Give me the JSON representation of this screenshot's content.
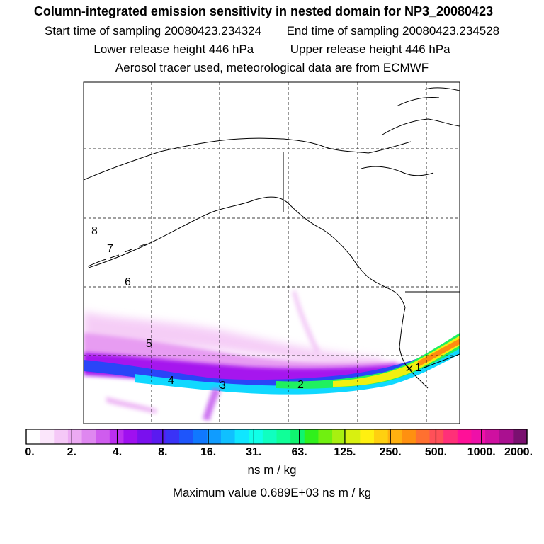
{
  "header": {
    "title": "Column-integrated emission sensitivity in nested domain for NP3_20080423",
    "start_label": "Start time of sampling",
    "start_value": "20080423.234324",
    "end_label": "End time of sampling",
    "end_value": "20080423.234528",
    "lower_label": "Lower release height",
    "lower_value": "446 hPa",
    "upper_label": "Upper release height",
    "upper_value": "446 hPa",
    "info": "Aerosol tracer used, meteorological data are from ECMWF"
  },
  "map": {
    "trajectory_labels": [
      "1",
      "2",
      "3",
      "4",
      "5",
      "6",
      "7",
      "8"
    ]
  },
  "colorbar": {
    "tick_labels": [
      "0.",
      "2.",
      "4.",
      "8.",
      "16.",
      "31.",
      "63.",
      "125.",
      "250.",
      "500.",
      "1000.",
      "2000."
    ],
    "colors": [
      "#ffffff",
      "#fbe6fb",
      "#f5c8f7",
      "#ecaaf3",
      "#df87f0",
      "#cf5cee",
      "#bb2ff0",
      "#9f10f0",
      "#7a10ee",
      "#5a1af0",
      "#3a33f6",
      "#1e55fb",
      "#1078ff",
      "#109cff",
      "#10c0ff",
      "#10e6ff",
      "#10ffe8",
      "#10ffc0",
      "#10ff98",
      "#10f470",
      "#30f01c",
      "#70f010",
      "#a8f010",
      "#d8f010",
      "#fff010",
      "#ffd010",
      "#ffb010",
      "#ff9010",
      "#ff7030",
      "#ff5058",
      "#ff3078",
      "#ff1098",
      "#ee10a8",
      "#cf10a0",
      "#aa1090",
      "#7a1070"
    ],
    "units": "ns m / kg"
  },
  "footer": {
    "max_label": "Maximum value",
    "max_value": "0.689E+03",
    "max_units": "ns m / kg"
  }
}
